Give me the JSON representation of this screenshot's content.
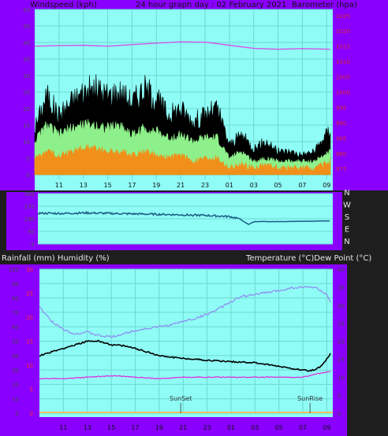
{
  "colors": {
    "frame": "#8a00ff",
    "plot_bg": "#8ffcf6",
    "grid": "#6fd8d2",
    "wind_gust": "#000000",
    "wind_avg": "#8ef08a",
    "wind_min": "#f0901a",
    "barometer": "#d257e8",
    "direction": "#1c5c84",
    "temperature": "#8f90f0",
    "dewpoint": "#000000",
    "humidity": "#e02ee0",
    "sun_marker": "#555555",
    "rain_axis": "#ff2a2a"
  },
  "top": {
    "title_left": "Windspeed (kph)",
    "title_center": "24 hour graph day : 02 February 2021",
    "title_right": "Barometer (hpa)"
  },
  "direction_labels": [
    "N",
    "W",
    "S",
    "E",
    "N"
  ],
  "bottom": {
    "title_left": "Rainfall (mm)  Humidity (%)",
    "title_right": "Temperature (°C)Dew Point (°C)",
    "sunset_label": "SunSet",
    "sunrise_label": "SunRise"
  },
  "chart_data": [
    {
      "type": "line",
      "name": "wind-barometer",
      "title": "24 hour graph day : 02 February 2021",
      "ylabel": "Windspeed (kph)",
      "y2label": "Barometer (hpa)",
      "x_hours": [
        "11",
        "13",
        "15",
        "17",
        "19",
        "21",
        "23",
        "01",
        "03",
        "05",
        "07",
        "09"
      ],
      "y_ticks": [
        "50",
        "45",
        "40",
        "35",
        "30",
        "25",
        "20",
        "15",
        "10",
        "5",
        "0"
      ],
      "y2_ticks": [
        "1025",
        "1020",
        "1015",
        "1010",
        "1005",
        "1000",
        "995",
        "990",
        "985",
        "980",
        "975"
      ],
      "ylim": [
        0,
        50
      ],
      "y2lim": [
        973,
        1027
      ],
      "xlim": [
        9,
        33.5
      ],
      "series": [
        {
          "name": "gust",
          "x": [
            9,
            10,
            11,
            12,
            13,
            14,
            15,
            16,
            17,
            18,
            19,
            20,
            21,
            22,
            23,
            24,
            25,
            26,
            27,
            28,
            29,
            30,
            31,
            32,
            33.3
          ],
          "values": [
            14,
            24,
            18,
            22,
            25,
            26,
            24,
            25,
            22,
            26,
            23,
            18,
            20,
            16,
            18,
            20,
            9,
            12,
            8,
            10,
            7,
            7,
            6,
            7,
            14
          ]
        },
        {
          "name": "average",
          "x": [
            9,
            10,
            11,
            12,
            13,
            14,
            15,
            16,
            17,
            18,
            19,
            20,
            21,
            22,
            23,
            24,
            25,
            26,
            27,
            28,
            29,
            30,
            31,
            32,
            33.3
          ],
          "values": [
            10,
            15,
            12,
            14,
            15,
            15,
            14,
            15,
            12,
            14,
            13,
            11,
            12,
            10,
            11,
            11,
            5,
            7,
            4,
            5,
            4,
            4,
            4,
            4,
            7
          ]
        },
        {
          "name": "minimum",
          "x": [
            9,
            10,
            11,
            12,
            13,
            14,
            15,
            16,
            17,
            18,
            19,
            20,
            21,
            22,
            23,
            24,
            25,
            26,
            27,
            28,
            29,
            30,
            31,
            32,
            33.3
          ],
          "values": [
            5,
            7,
            6,
            7,
            8,
            8,
            7,
            7,
            6,
            7,
            6,
            5,
            6,
            4,
            5,
            5,
            2,
            3,
            2,
            3,
            2,
            2,
            2,
            2,
            4
          ]
        },
        {
          "name": "barometer",
          "x": [
            9,
            11,
            13,
            15,
            17,
            19,
            21,
            23,
            25,
            27,
            29,
            31,
            33.3
          ],
          "values": [
            1015.0,
            1015.2,
            1015.3,
            1015.0,
            1015.5,
            1016.0,
            1016.4,
            1016.3,
            1015.3,
            1014.3,
            1014.0,
            1014.2,
            1014.0
          ]
        }
      ]
    },
    {
      "type": "line",
      "name": "wind-direction",
      "y_ticks": [
        "360",
        "270",
        "180",
        "90",
        "0"
      ],
      "ylim": [
        0,
        360
      ],
      "xlim": [
        9,
        33.5
      ],
      "series": [
        {
          "name": "direction",
          "x": [
            9,
            11,
            13,
            15,
            17,
            19,
            21,
            23,
            25,
            25.8,
            26,
            26.5,
            27,
            29,
            31,
            33.3
          ],
          "values": [
            220,
            218,
            222,
            218,
            215,
            212,
            208,
            204,
            195,
            180,
            165,
            140,
            160,
            160,
            162,
            165
          ]
        }
      ]
    },
    {
      "type": "line",
      "name": "temperature-humidity",
      "y_ticks": [
        "100",
        "90",
        "80",
        "70",
        "60",
        "50",
        "40",
        "30",
        "20",
        "10",
        "0"
      ],
      "rain_ticks": [
        "30",
        "25",
        "20",
        "15",
        "10",
        "5",
        "0"
      ],
      "y2_ticks": [
        "40",
        "35",
        "30",
        "25",
        "20",
        "15",
        "10",
        "5",
        "0"
      ],
      "ylim": [
        0,
        100
      ],
      "y2lim": [
        0,
        40
      ],
      "rainlim": [
        0,
        30
      ],
      "xlim": [
        9,
        33.5
      ],
      "series": [
        {
          "name": "temperature",
          "x": [
            9,
            10,
            11,
            12,
            13,
            14,
            15,
            16,
            17,
            18,
            19,
            20,
            21,
            22,
            23,
            24,
            25,
            26,
            27,
            28,
            29,
            30,
            31,
            32,
            32.5,
            33,
            33.3
          ],
          "values": [
            29.5,
            25.5,
            23.3,
            22.0,
            22.5,
            21.5,
            21.2,
            22.0,
            23.0,
            23.5,
            24.0,
            24.5,
            25.5,
            26.3,
            27.5,
            29.0,
            31.0,
            32.5,
            33.0,
            33.5,
            34.0,
            34.8,
            35.0,
            35.0,
            34.0,
            33.0,
            30.5
          ]
        },
        {
          "name": "dewpoint",
          "x": [
            9,
            10,
            11,
            12,
            13,
            14,
            15,
            16,
            17,
            18,
            19,
            20,
            21,
            22,
            23,
            24,
            25,
            26,
            27,
            28,
            29,
            30,
            31,
            31.5,
            32,
            32.5,
            33,
            33.3
          ],
          "values": [
            16.0,
            17.0,
            18.0,
            19.0,
            20.0,
            20.0,
            19.0,
            18.7,
            18.0,
            17.0,
            16.0,
            15.6,
            15.2,
            15.0,
            14.7,
            14.5,
            14.3,
            14.2,
            14.0,
            13.5,
            13.0,
            12.5,
            12.0,
            11.8,
            12.0,
            13.0,
            15.0,
            16.5
          ]
        },
        {
          "name": "humidity",
          "x": [
            9,
            11,
            13,
            15,
            17,
            19,
            21,
            23,
            25,
            27,
            29,
            31,
            32,
            33.3
          ],
          "values": [
            24,
            24,
            25,
            26,
            25,
            24,
            25,
            25,
            25,
            25,
            25,
            25,
            27,
            29
          ]
        },
        {
          "name": "rainfall",
          "x": [
            9,
            33.3
          ],
          "values": [
            0,
            0
          ]
        }
      ],
      "annotations": [
        {
          "label": "SunSet",
          "x": 20.8
        },
        {
          "label": "SunRise",
          "x": 31.6
        }
      ]
    }
  ]
}
